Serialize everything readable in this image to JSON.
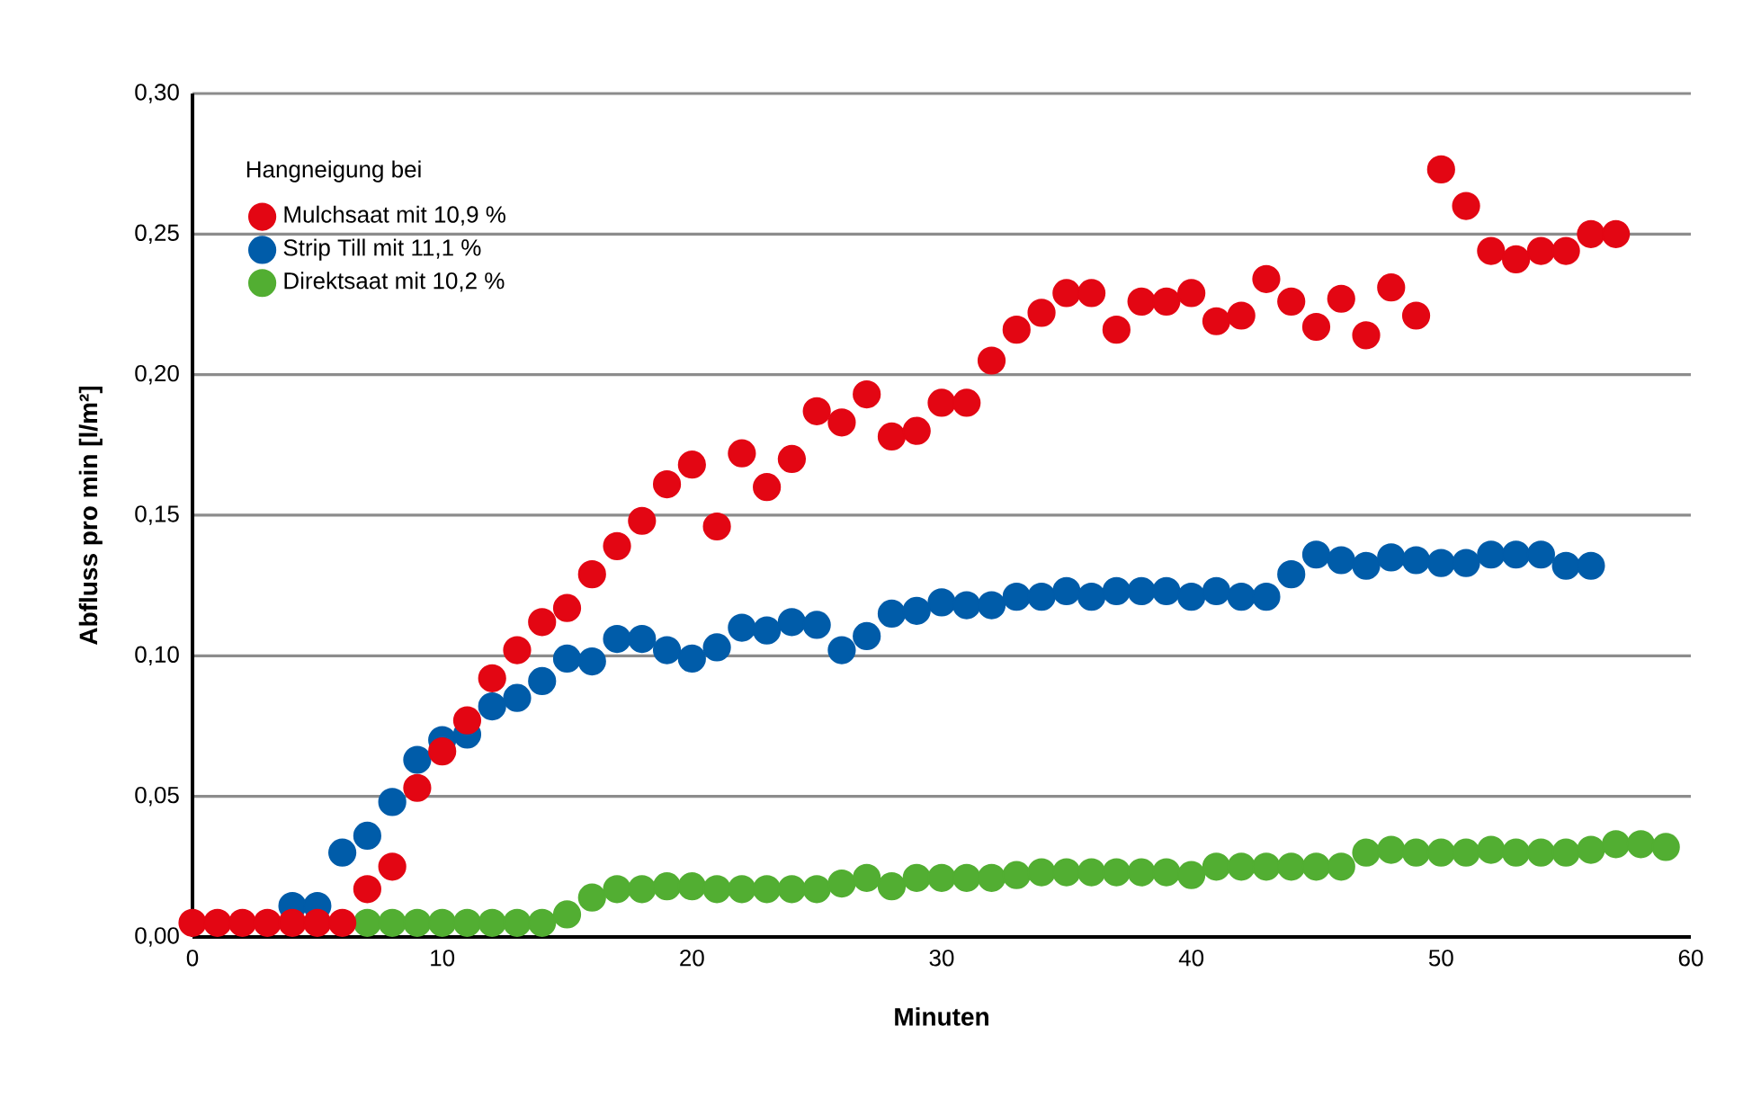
{
  "chart_data": {
    "type": "scatter",
    "xlabel": "Minuten",
    "ylabel": "Abfluss pro min [l/m²]",
    "legend_title": "Hangneigung bei",
    "legend": "top left",
    "marker": "circle",
    "grid": "y",
    "xlim": [
      0,
      60
    ],
    "xticks": [
      0,
      10,
      20,
      30,
      40,
      50,
      60
    ],
    "ylim": [
      0,
      0.3
    ],
    "yticks": [
      {
        "value": 0,
        "label": "0,00"
      },
      {
        "value": 0.05,
        "label": "0,05"
      },
      {
        "value": 0.1,
        "label": "0,10"
      },
      {
        "value": 0.15,
        "label": "0,15"
      },
      {
        "value": 0.2,
        "label": "0,20"
      },
      {
        "value": 0.25,
        "label": "0,25"
      },
      {
        "value": 0.3,
        "label": "0,30"
      }
    ],
    "series": [
      {
        "name": "Mulchsaat mit 10,9 %",
        "color": "#e30613",
        "x": [
          0,
          1,
          2,
          3,
          4,
          5,
          6,
          7,
          8,
          9,
          10,
          11,
          12,
          13,
          14,
          15,
          16,
          17,
          18,
          19,
          20,
          21,
          22,
          23,
          24,
          25,
          26,
          27,
          28,
          29,
          30,
          31,
          32,
          33,
          34,
          35,
          36,
          37,
          38,
          39,
          40,
          41,
          42,
          43,
          44,
          45,
          46,
          47,
          48,
          49,
          50,
          51,
          52,
          53,
          54,
          55,
          56,
          57
        ],
        "values": [
          0.005,
          0.005,
          0.005,
          0.005,
          0.005,
          0.005,
          0.005,
          0.017,
          0.025,
          0.053,
          0.066,
          0.077,
          0.092,
          0.102,
          0.112,
          0.117,
          0.129,
          0.139,
          0.148,
          0.161,
          0.168,
          0.146,
          0.172,
          0.16,
          0.17,
          0.187,
          0.183,
          0.193,
          0.178,
          0.18,
          0.19,
          0.19,
          0.205,
          0.216,
          0.222,
          0.229,
          0.229,
          0.216,
          0.226,
          0.226,
          0.229,
          0.219,
          0.221,
          0.234,
          0.226,
          0.217,
          0.227,
          0.214,
          0.231,
          0.221,
          0.273,
          0.26,
          0.244,
          0.241,
          0.244,
          0.244,
          0.25,
          0.25
        ]
      },
      {
        "name": "Strip Till mit 11,1 %",
        "color": "#005ca9",
        "x": [
          4,
          5,
          6,
          7,
          8,
          9,
          10,
          11,
          12,
          13,
          14,
          15,
          16,
          17,
          18,
          19,
          20,
          21,
          22,
          23,
          24,
          25,
          26,
          27,
          28,
          29,
          30,
          31,
          32,
          33,
          34,
          35,
          36,
          37,
          38,
          39,
          40,
          41,
          42,
          43,
          44,
          45,
          46,
          47,
          48,
          49,
          50,
          51,
          52,
          53,
          54,
          55,
          56
        ],
        "values": [
          0.011,
          0.011,
          0.03,
          0.036,
          0.048,
          0.063,
          0.07,
          0.072,
          0.082,
          0.085,
          0.091,
          0.099,
          0.098,
          0.106,
          0.106,
          0.102,
          0.099,
          0.103,
          0.11,
          0.109,
          0.112,
          0.111,
          0.102,
          0.107,
          0.115,
          0.116,
          0.119,
          0.118,
          0.118,
          0.121,
          0.121,
          0.123,
          0.121,
          0.123,
          0.123,
          0.123,
          0.121,
          0.123,
          0.121,
          0.121,
          0.129,
          0.136,
          0.134,
          0.132,
          0.135,
          0.134,
          0.133,
          0.133,
          0.136,
          0.136,
          0.136,
          0.132,
          0.132
        ]
      },
      {
        "name": "Direktsaat mit 10,2 %",
        "color": "#52ae32",
        "x": [
          7,
          8,
          9,
          10,
          11,
          12,
          13,
          14,
          15,
          16,
          17,
          18,
          19,
          20,
          21,
          22,
          23,
          24,
          25,
          26,
          27,
          28,
          29,
          30,
          31,
          32,
          33,
          34,
          35,
          36,
          37,
          38,
          39,
          40,
          41,
          42,
          43,
          44,
          45,
          46,
          47,
          48,
          49,
          50,
          51,
          52,
          53,
          54,
          55,
          56,
          57,
          58,
          59
        ],
        "values": [
          0.005,
          0.005,
          0.005,
          0.005,
          0.005,
          0.005,
          0.005,
          0.005,
          0.008,
          0.014,
          0.017,
          0.017,
          0.018,
          0.018,
          0.017,
          0.017,
          0.017,
          0.017,
          0.017,
          0.019,
          0.021,
          0.018,
          0.021,
          0.021,
          0.021,
          0.021,
          0.022,
          0.023,
          0.023,
          0.023,
          0.023,
          0.023,
          0.023,
          0.022,
          0.025,
          0.025,
          0.025,
          0.025,
          0.025,
          0.025,
          0.03,
          0.031,
          0.03,
          0.03,
          0.03,
          0.031,
          0.03,
          0.03,
          0.03,
          0.031,
          0.033,
          0.033,
          0.032
        ]
      }
    ]
  }
}
